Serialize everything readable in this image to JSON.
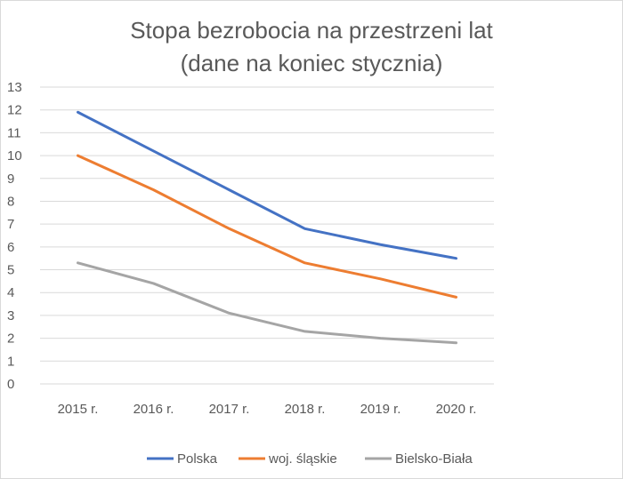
{
  "chart_data": {
    "type": "line",
    "title": [
      "Stopa bezrobocia na przestrzeni lat",
      "(dane na koniec stycznia)"
    ],
    "xlabel": "",
    "ylabel": "",
    "categories": [
      "2015 r.",
      "2016 r.",
      "2017 r.",
      "2018 r.",
      "2019 r.",
      "2020 r."
    ],
    "ylim": [
      0,
      13
    ],
    "yticks": [
      "0",
      "1",
      "2",
      "3",
      "4",
      "5",
      "6",
      "7",
      "8",
      "9",
      "10",
      "11",
      "12",
      "13"
    ],
    "grid": true,
    "legend_position": "bottom",
    "series": [
      {
        "name": "Polska",
        "color": "#4472c4",
        "values": [
          11.9,
          10.2,
          8.5,
          6.8,
          6.1,
          5.5
        ]
      },
      {
        "name": "woj. śląskie",
        "color": "#ed7d31",
        "values": [
          10.0,
          8.5,
          6.8,
          5.3,
          4.6,
          3.8
        ]
      },
      {
        "name": "Bielsko-Biała",
        "color": "#a5a5a5",
        "values": [
          5.3,
          4.4,
          3.1,
          2.3,
          2.0,
          1.8
        ]
      }
    ]
  }
}
